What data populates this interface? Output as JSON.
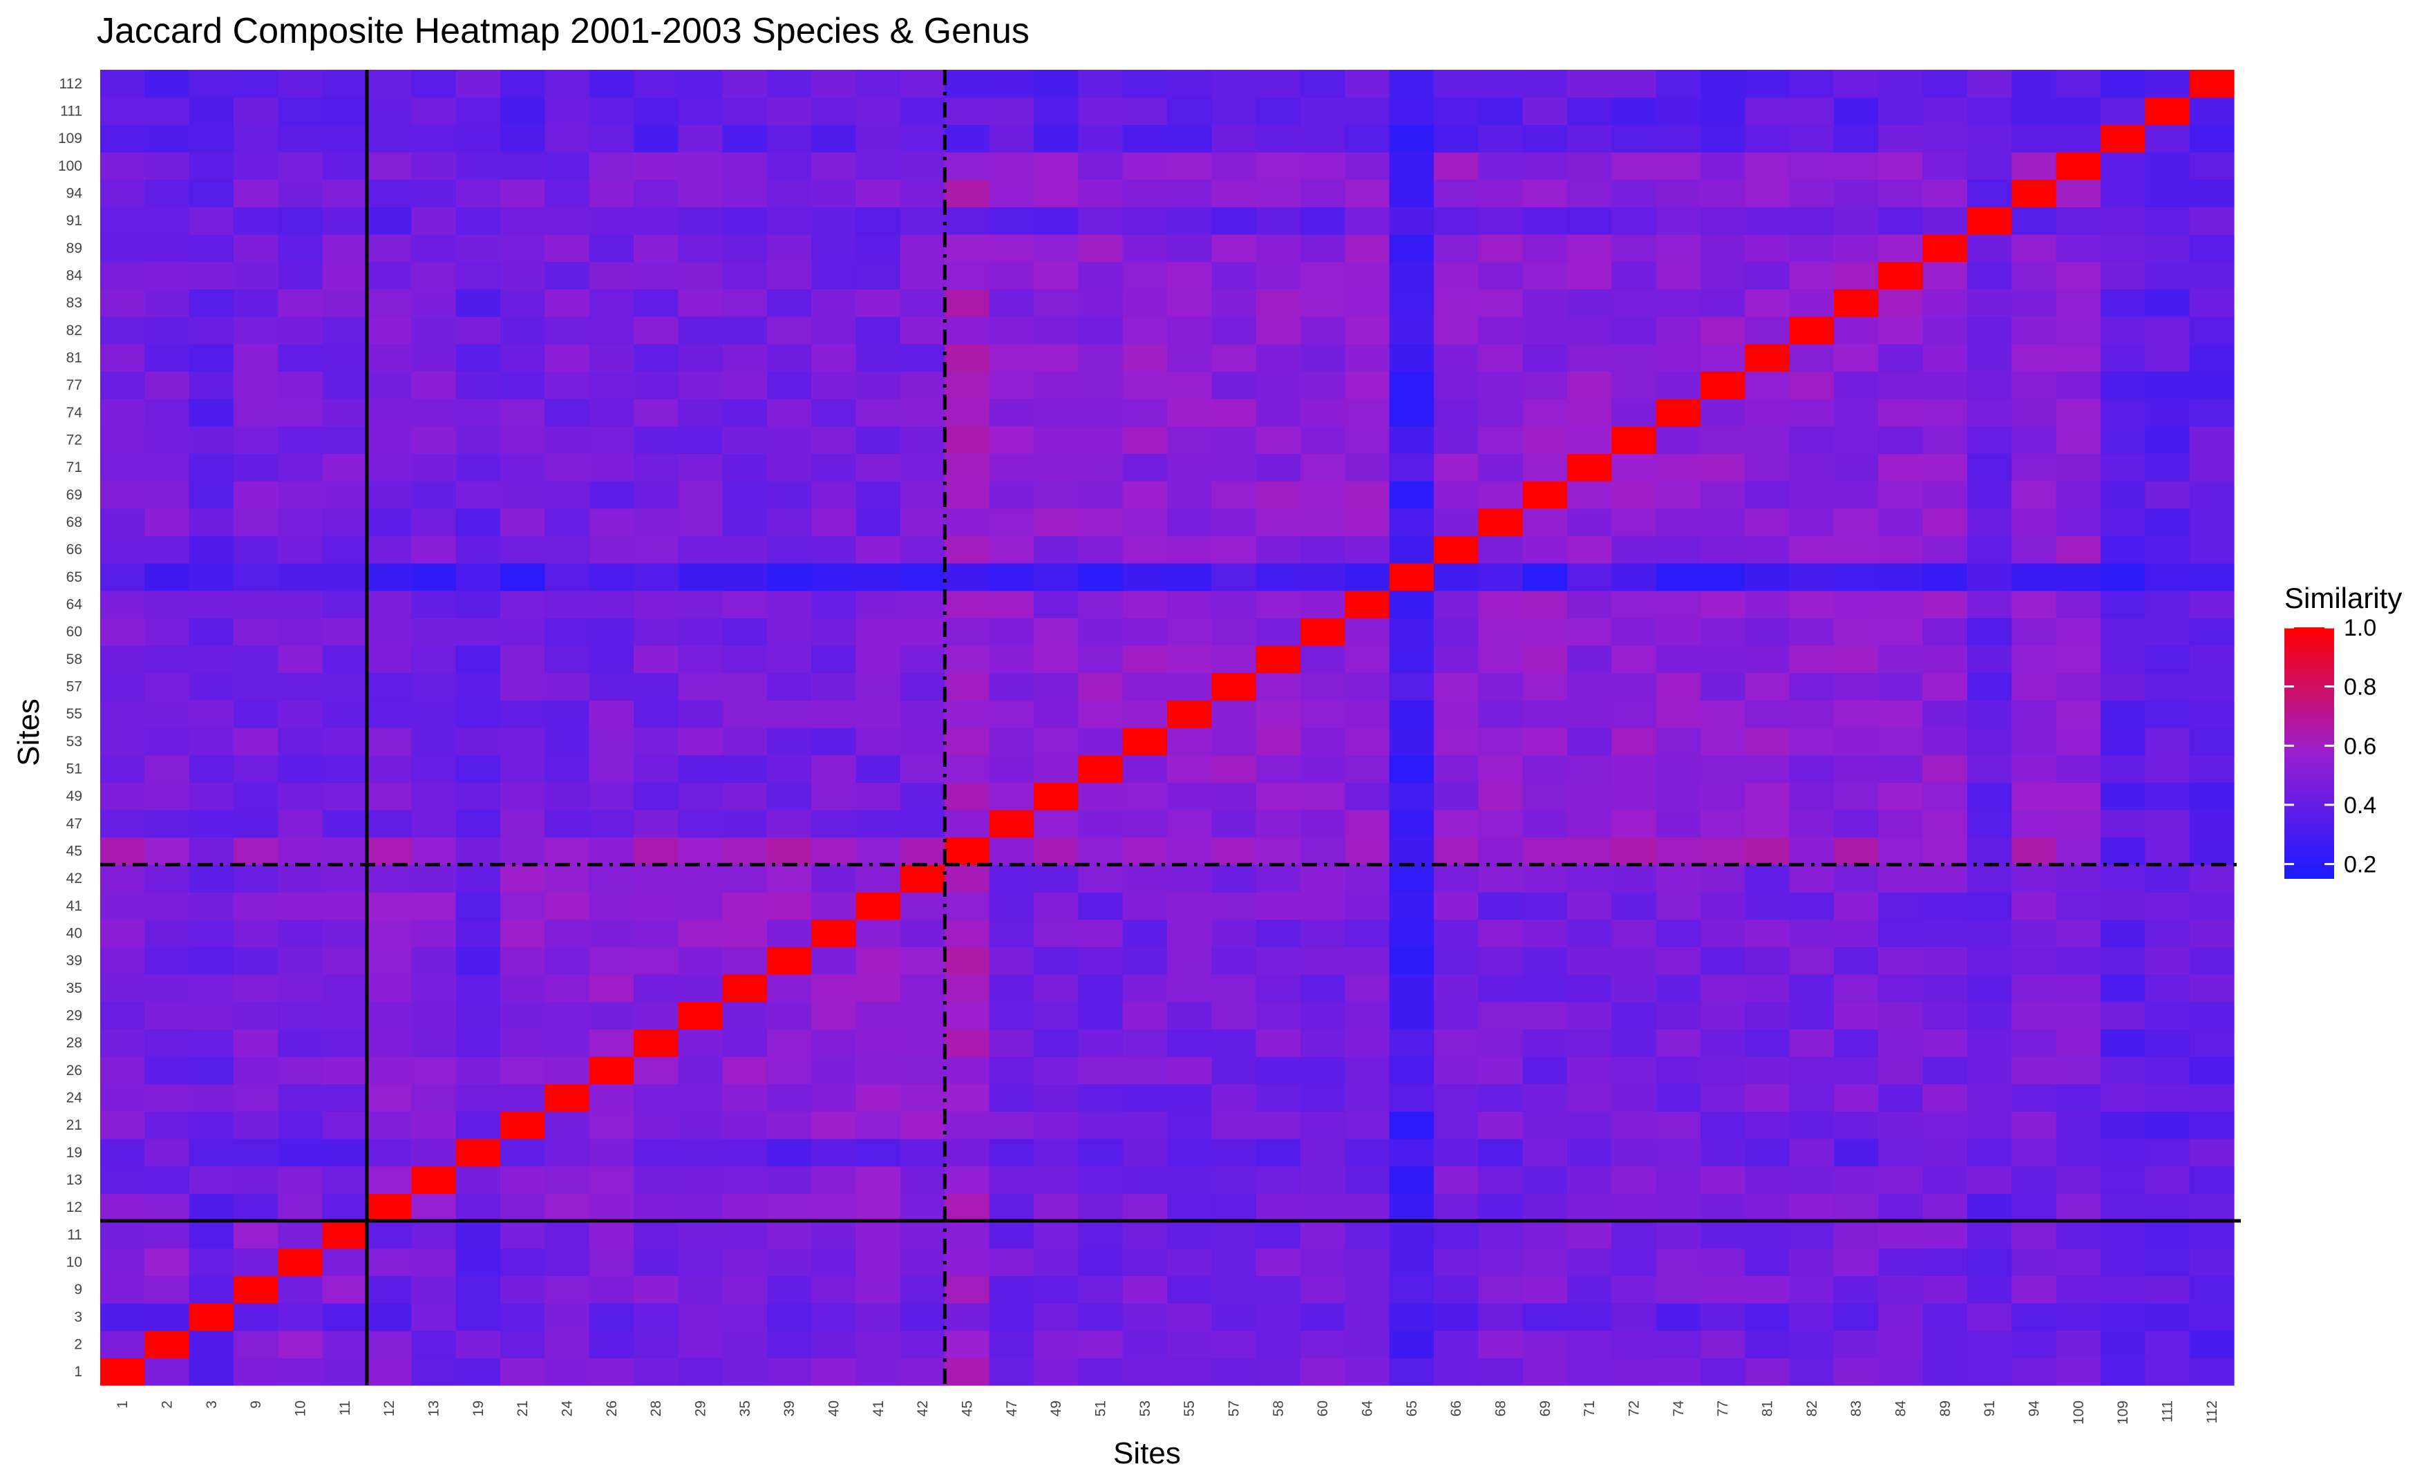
{
  "chart_data": {
    "type": "heatmap",
    "title": "Jaccard Composite Heatmap 2001-2003 Species & Genus",
    "xlabel": "Sites",
    "ylabel": "Sites",
    "sites": [
      "1",
      "2",
      "3",
      "9",
      "10",
      "11",
      "12",
      "13",
      "19",
      "21",
      "24",
      "26",
      "28",
      "29",
      "35",
      "39",
      "40",
      "41",
      "42",
      "45",
      "47",
      "49",
      "51",
      "53",
      "55",
      "57",
      "58",
      "60",
      "64",
      "65",
      "66",
      "68",
      "69",
      "71",
      "72",
      "74",
      "77",
      "81",
      "82",
      "83",
      "84",
      "89",
      "91",
      "94",
      "100",
      "109",
      "111",
      "112"
    ],
    "groups": [
      [
        "1",
        "2",
        "3",
        "9",
        "10",
        "11"
      ],
      [
        "12",
        "13",
        "19",
        "21",
        "24",
        "26",
        "28",
        "29",
        "35",
        "39",
        "40",
        "41",
        "42"
      ],
      [
        "45"
      ],
      [
        "47",
        "49",
        "51",
        "53",
        "55",
        "57",
        "58",
        "60",
        "64",
        "65",
        "66",
        "68",
        "69",
        "71",
        "72",
        "74",
        "77",
        "81",
        "82",
        "83",
        "84",
        "89",
        "91",
        "94",
        "100",
        "109",
        "111",
        "112"
      ]
    ],
    "dividers": [
      {
        "after_site": "11",
        "style": "solid"
      },
      {
        "after_site": "42",
        "style": "dashdot"
      }
    ],
    "color_scale": {
      "low": "#1a1aff",
      "mid": "#9a1fd0",
      "high": "#ff0000",
      "min": 0.15,
      "max": 1.0
    },
    "diagonal_value": 1.0,
    "low_similarity_sites": {
      "65": 0.28,
      "112": 0.38,
      "109": 0.37,
      "111": 0.38,
      "91": 0.4,
      "3": 0.4,
      "19": 0.4
    },
    "legend": {
      "title": "Similarity",
      "position": "right",
      "ticks": [
        {
          "value": 1.0,
          "label": "1.0"
        },
        {
          "value": 0.8,
          "label": "0.8"
        },
        {
          "value": 0.6,
          "label": "0.6"
        },
        {
          "value": 0.4,
          "label": "0.4"
        },
        {
          "value": 0.2,
          "label": "0.2"
        }
      ]
    }
  }
}
